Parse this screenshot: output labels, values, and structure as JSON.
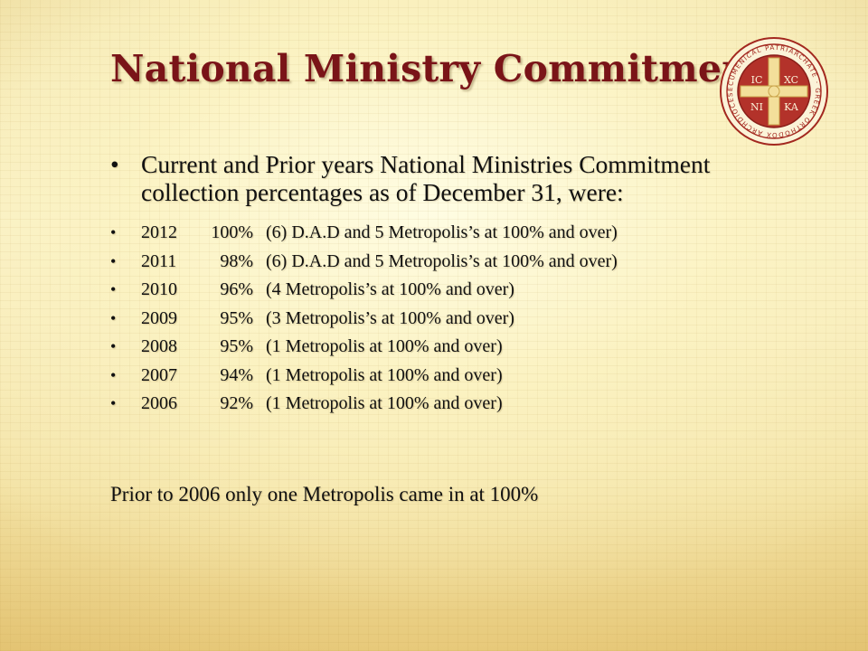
{
  "slide": {
    "title": "National Ministry Commitment",
    "seal": {
      "ring_text": "ECUMENICAL PATRIARCHATE · GREEK ORTHODOX ARCHDIOCESE OF AMERICA",
      "q1": "IC",
      "q2": "XC",
      "q3": "NI",
      "q4": "KA"
    },
    "lead_bullet": "Current and Prior years National Ministries Commitment collection percentages as of December 31, were:",
    "items": [
      {
        "year": "2012",
        "percent": "100%",
        "note": "(6) D.A.D and 5 Metropolis’s at 100% and over)"
      },
      {
        "year": "2011",
        "percent": "98%",
        "note": "(6) D.A.D and 5 Metropolis’s at 100% and over)"
      },
      {
        "year": "2010",
        "percent": "96%",
        "note": "(4 Metropolis’s at 100% and over)"
      },
      {
        "year": "2009",
        "percent": "95%",
        "note": "(3 Metropolis’s at 100% and over)"
      },
      {
        "year": "2008",
        "percent": "95%",
        "note": "(1 Metropolis at 100% and over)"
      },
      {
        "year": "2007",
        "percent": "94%",
        "note": "(1 Metropolis at 100% and over)"
      },
      {
        "year": "2006",
        "percent": "92%",
        "note": "(1 Metropolis at 100% and over)"
      }
    ],
    "footer": "Prior to 2006 only one Metropolis  came in at 100%",
    "colors": {
      "title": "#7a1418",
      "seal_ring": "#a3281f",
      "text": "#111111"
    }
  }
}
